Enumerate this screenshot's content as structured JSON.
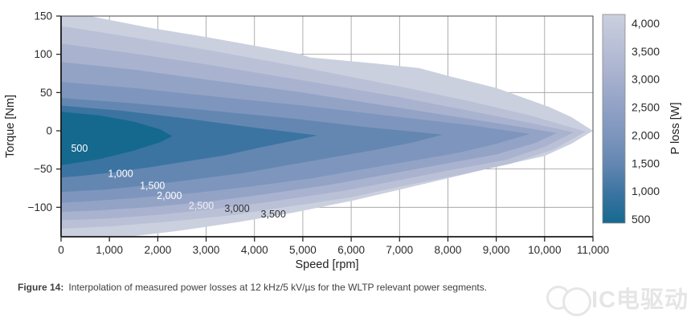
{
  "figure": {
    "caption_label": "Figure 14:",
    "caption_text": "Interpolation of measured power losses at 12 kHz/5 kV/µs for the WLTP relevant power segments."
  },
  "watermark": {
    "text": "IC电驱动"
  },
  "chart_data": {
    "type": "filled-contour",
    "title": "",
    "xlabel": "Speed [rpm]",
    "ylabel": "Torque [Nm]",
    "colorbar_label": "P loss [W]",
    "xlim": [
      0,
      11000
    ],
    "ylim": [
      -138.5,
      150
    ],
    "grid": true,
    "grid_color": "#9b9b9b",
    "frame_color": "#444444",
    "axis_color": "#1a1a1a",
    "tick_text_color": "#2a2a2a",
    "xticks": [
      0,
      1000,
      2000,
      3000,
      4000,
      5000,
      6000,
      7000,
      8000,
      9000,
      10000,
      11000
    ],
    "xtick_labels": [
      "0",
      "1,000",
      "2,000",
      "3,000",
      "4,000",
      "5,000",
      "6,000",
      "7,000",
      "8,000",
      "9,000",
      "10,000",
      "11,000"
    ],
    "yticks": [
      150,
      100,
      50,
      0,
      -50,
      -100
    ],
    "ytick_labels": [
      "150",
      "100",
      "50",
      "0",
      "−50",
      "−100"
    ],
    "colorbar_range": [
      500,
      4000
    ],
    "colorbar_tick_levels": [
      4000,
      3500,
      3000,
      2500,
      2000,
      1500,
      1000,
      500
    ],
    "colorbar_tick_labels": [
      "4,000",
      "3,500",
      "3,000",
      "2,500",
      "2,000",
      "1,500",
      "1,000",
      "500"
    ],
    "colorbar_gradient_bottom_to_top": [
      "#15698f",
      "#3b74a1",
      "#6487b2",
      "#7e96bd",
      "#93a3c6",
      "#a9b2cf",
      "#bac1d7",
      "#cbd0df"
    ],
    "contour_levels": [
      {
        "name": "data-edge",
        "level": 4000,
        "fill": "#cbd0df",
        "points": [
          [
            0,
            158
          ],
          [
            600,
            150
          ],
          [
            1800,
            135
          ],
          [
            3060,
            122
          ],
          [
            4900,
            101
          ],
          [
            5150,
            96
          ],
          [
            6500,
            88
          ],
          [
            7400,
            82
          ],
          [
            8050,
            71
          ],
          [
            9000,
            56
          ],
          [
            9400,
            47
          ],
          [
            10100,
            31
          ],
          [
            10550,
            18
          ],
          [
            11000,
            0
          ],
          [
            10550,
            -17
          ],
          [
            10000,
            -33
          ],
          [
            9000,
            -47
          ],
          [
            8000,
            -62
          ],
          [
            7000,
            -77
          ],
          [
            6050,
            -91
          ],
          [
            4800,
            -107
          ],
          [
            3700,
            -119
          ],
          [
            2400,
            -131
          ],
          [
            1200,
            -140
          ],
          [
            0,
            -146
          ]
        ]
      },
      {
        "name": "contour-3500",
        "level": 3500,
        "fill": "#bac1d7",
        "points": [
          [
            0,
            137
          ],
          [
            1500,
            122
          ],
          [
            3000,
            106
          ],
          [
            5000,
            83
          ],
          [
            7000,
            58
          ],
          [
            8500,
            38
          ],
          [
            9700,
            20
          ],
          [
            10850,
            -1
          ],
          [
            10200,
            -24
          ],
          [
            9300,
            -43
          ],
          [
            8300,
            -57
          ],
          [
            7000,
            -73
          ],
          [
            6000,
            -87
          ],
          [
            4500,
            -101
          ],
          [
            3600,
            -110
          ],
          [
            2200,
            -119
          ],
          [
            1000,
            -125
          ],
          [
            0,
            -128
          ]
        ]
      },
      {
        "name": "contour-3000",
        "level": 3000,
        "fill": "#a9b2cf",
        "points": [
          [
            0,
            114
          ],
          [
            1500,
            101
          ],
          [
            3000,
            87
          ],
          [
            5000,
            66
          ],
          [
            7000,
            44
          ],
          [
            8700,
            23
          ],
          [
            9800,
            9
          ],
          [
            10600,
            -2
          ],
          [
            10000,
            -21
          ],
          [
            9200,
            -38
          ],
          [
            8000,
            -52
          ],
          [
            6800,
            -67
          ],
          [
            5800,
            -79
          ],
          [
            4300,
            -93
          ],
          [
            3200,
            -102
          ],
          [
            2000,
            -110
          ],
          [
            900,
            -115
          ],
          [
            0,
            -117
          ]
        ]
      },
      {
        "name": "contour-2500",
        "level": 2500,
        "fill": "#93a3c6",
        "points": [
          [
            0,
            90
          ],
          [
            1500,
            80
          ],
          [
            3000,
            67
          ],
          [
            5000,
            50
          ],
          [
            7000,
            30
          ],
          [
            8800,
            12
          ],
          [
            9700,
            3
          ],
          [
            10250,
            -3
          ],
          [
            9800,
            -16
          ],
          [
            9000,
            -31
          ],
          [
            7600,
            -47
          ],
          [
            6400,
            -61
          ],
          [
            5500,
            -71
          ],
          [
            4200,
            -83
          ],
          [
            3000,
            -93
          ],
          [
            1800,
            -100
          ],
          [
            800,
            -104
          ],
          [
            0,
            -106
          ]
        ]
      },
      {
        "name": "contour-2000",
        "level": 2000,
        "fill": "#7e96bd",
        "points": [
          [
            0,
            64
          ],
          [
            1500,
            56
          ],
          [
            3000,
            46
          ],
          [
            5000,
            33
          ],
          [
            7000,
            18
          ],
          [
            8500,
            7
          ],
          [
            9700,
            -4
          ],
          [
            9000,
            -17
          ],
          [
            8200,
            -29
          ],
          [
            7200,
            -40
          ],
          [
            6000,
            -53
          ],
          [
            5200,
            -62
          ],
          [
            3900,
            -73
          ],
          [
            2800,
            -81
          ],
          [
            1500,
            -88
          ],
          [
            600,
            -92
          ],
          [
            0,
            -94
          ]
        ]
      },
      {
        "name": "contour-1500",
        "level": 1500,
        "fill": "#6487b2",
        "points": [
          [
            0,
            43
          ],
          [
            1500,
            36
          ],
          [
            3000,
            27
          ],
          [
            4800,
            16
          ],
          [
            6300,
            5
          ],
          [
            7900,
            -5
          ],
          [
            7300,
            -15
          ],
          [
            6500,
            -25
          ],
          [
            5500,
            -36
          ],
          [
            4600,
            -46
          ],
          [
            3800,
            -55
          ],
          [
            2700,
            -64
          ],
          [
            1800,
            -71
          ],
          [
            900,
            -77
          ],
          [
            0,
            -80
          ]
        ]
      },
      {
        "name": "contour-1000",
        "level": 1000,
        "fill": "#3b74a1",
        "points": [
          [
            0,
            33
          ],
          [
            1300,
            26
          ],
          [
            2600,
            16
          ],
          [
            3900,
            5
          ],
          [
            5300,
            -6
          ],
          [
            4800,
            -13
          ],
          [
            4100,
            -22
          ],
          [
            3400,
            -32
          ],
          [
            2600,
            -40
          ],
          [
            1800,
            -48
          ],
          [
            1000,
            -55
          ],
          [
            400,
            -59
          ],
          [
            0,
            -61
          ]
        ]
      },
      {
        "name": "contour-500",
        "level": 500,
        "fill": "#15698f",
        "points": [
          [
            0,
            25
          ],
          [
            800,
            20
          ],
          [
            1500,
            12
          ],
          [
            2050,
            2
          ],
          [
            2300,
            -7
          ],
          [
            2050,
            -15
          ],
          [
            1500,
            -26
          ],
          [
            800,
            -37
          ],
          [
            300,
            -42
          ],
          [
            0,
            -45
          ]
        ]
      }
    ],
    "contour_labels": [
      {
        "text": "500",
        "x": 380,
        "y": -23,
        "color": "#ffffff"
      },
      {
        "text": "1,000",
        "x": 1230,
        "y": -56,
        "color": "#ffffff"
      },
      {
        "text": "1,500",
        "x": 1890,
        "y": -72,
        "color": "#ffffff"
      },
      {
        "text": "2,000",
        "x": 2240,
        "y": -85,
        "color": "#ffffff"
      },
      {
        "text": "2,500",
        "x": 2900,
        "y": -98,
        "color": "#eef0f8"
      },
      {
        "text": "3,000",
        "x": 3640,
        "y": -102,
        "color": "#333333"
      },
      {
        "text": "3,500",
        "x": 4390,
        "y": -109,
        "color": "#333333"
      }
    ]
  }
}
